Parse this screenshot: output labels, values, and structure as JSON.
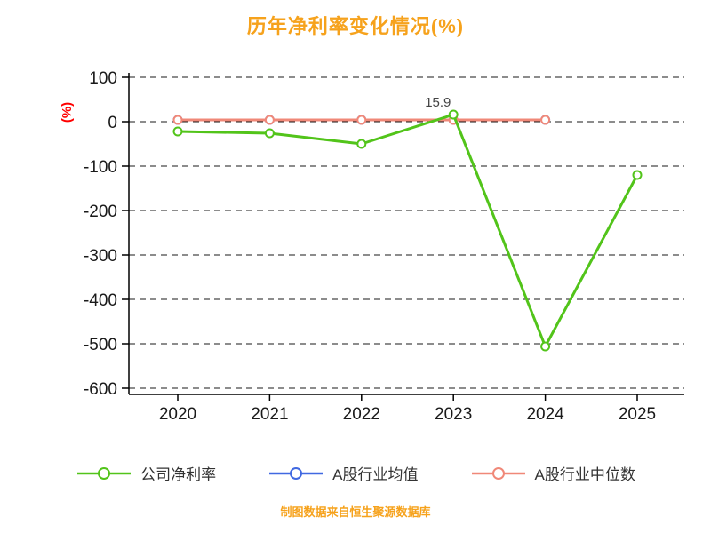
{
  "page": {
    "title": "历年净利率变化情况(%)",
    "ylabel": "(%)",
    "footer": "制图数据来自恒生聚源数据库"
  },
  "colors": {
    "title": "#f6a21c",
    "footer": "#f6a21c",
    "ylabel": "#ff0000",
    "axis": "#000000",
    "tick_label": "#1a1a1a",
    "series_company": "#52c41a",
    "series_industry_mean": "#4169e1",
    "series_industry_median": "#f08878"
  },
  "chart_data": {
    "type": "line",
    "title": "历年净利率变化情况(%)",
    "xlabel": "",
    "ylabel": "(%)",
    "x": [
      "2020",
      "2021",
      "2022",
      "2023",
      "2024",
      "2025"
    ],
    "ylim": [
      -600,
      100
    ],
    "yticks": [
      100,
      0,
      -100,
      -200,
      -300,
      -400,
      -500,
      -600
    ],
    "grid": "horizontal-dashed",
    "legend_position": "bottom",
    "marker": "circle-white-fill",
    "series": [
      {
        "name": "公司净利率",
        "color": "#52c41a",
        "values": [
          -22,
          -26,
          -50,
          15.9,
          -506,
          -120
        ]
      },
      {
        "name": "A股行业均值",
        "color": "#4169e1",
        "values": [
          4,
          4,
          4,
          4,
          4,
          null
        ]
      },
      {
        "name": "A股行业中位数",
        "color": "#f08878",
        "values": [
          4,
          4,
          4,
          4,
          4,
          null
        ]
      }
    ],
    "annotations": [
      {
        "x": "2023",
        "y": 15.9,
        "text": "15.9"
      }
    ]
  }
}
